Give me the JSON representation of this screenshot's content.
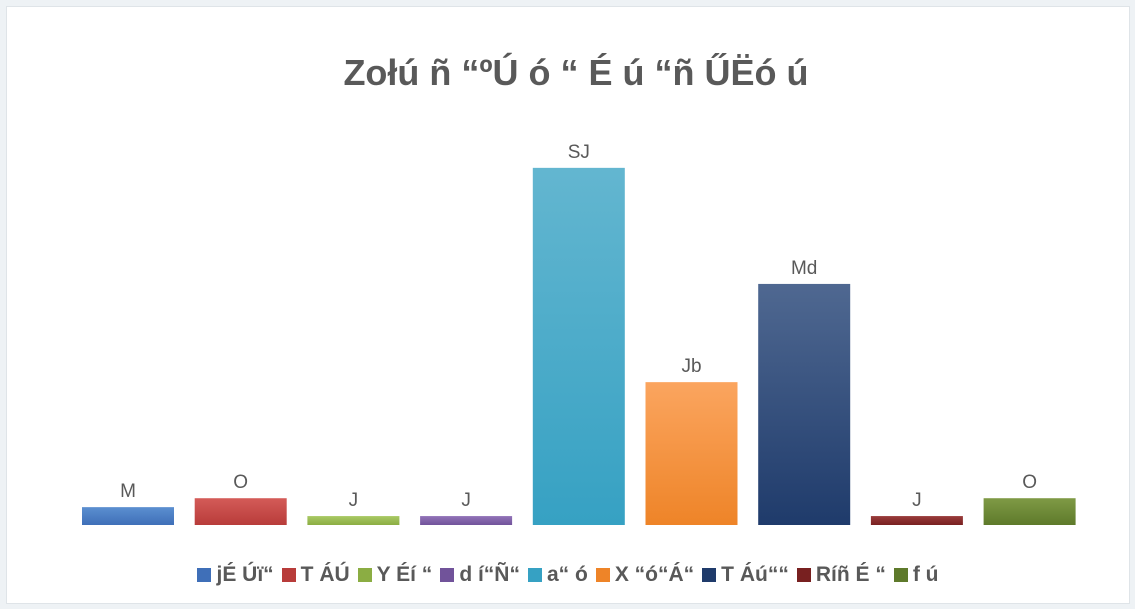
{
  "chart_data": {
    "type": "bar",
    "title": "Zołú ñ “ºÚ ó “ É ú “ñ ŰËó ú",
    "xlabel": "",
    "ylabel": "",
    "ylim": [
      0,
      42
    ],
    "grid": false,
    "legend_position": "bottom",
    "categories": [
      "jÉ Úï“",
      "T ÁÚ",
      "Y Éí “",
      "d í“Ñ“",
      "a“ ó",
      "X “ó“Á“",
      "T Áú““",
      "Ríñ É “",
      "f ú"
    ],
    "values": [
      2,
      3,
      1,
      1,
      40,
      16,
      27,
      1,
      3
    ],
    "data_labels": [
      "M",
      "O",
      "J",
      "J",
      "SJ",
      "Jb",
      "Md",
      "J",
      "O"
    ],
    "colors": [
      [
        "#5b8fd0",
        "#3f6fb8"
      ],
      [
        "#d45b58",
        "#b83c3a"
      ],
      [
        "#a9c964",
        "#8bad43"
      ],
      [
        "#9273b8",
        "#71539a"
      ],
      [
        "#63b6d0",
        "#36a1c3"
      ],
      [
        "#fba55f",
        "#ee8428"
      ],
      [
        "#4f6891",
        "#1f3b6b"
      ],
      [
        "#9a3c3b",
        "#782020"
      ],
      [
        "#7f9a45",
        "#5e7a2b"
      ]
    ]
  }
}
